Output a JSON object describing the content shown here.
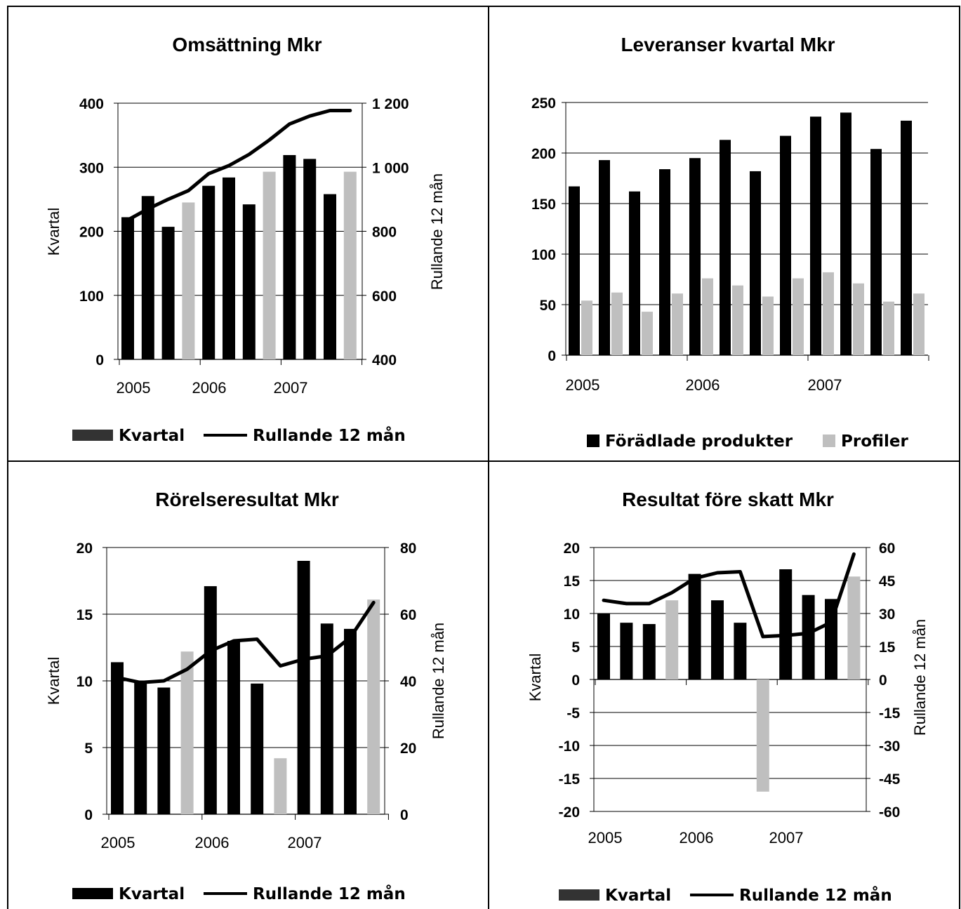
{
  "chart_data": [
    {
      "id": "omsattning",
      "type": "bar",
      "title": "Omsättning Mkr",
      "ylabel": "Kvartal",
      "y2label": "Rullande 12 mån",
      "ylim": [
        0,
        400
      ],
      "y2lim": [
        400,
        1200
      ],
      "yticks": [
        "0",
        "100",
        "200",
        "300",
        "400"
      ],
      "y2ticks": [
        "400",
        "600",
        "800",
        "1 000",
        "1 200"
      ],
      "x_labels": [
        {
          "text": "2005",
          "at": 0
        },
        {
          "text": "2006",
          "at": 4
        },
        {
          "text": "2007",
          "at": 8
        }
      ],
      "quarters": 12,
      "bars": [
        {
          "value": 222,
          "color": "#000000"
        },
        {
          "value": 255,
          "color": "#000000"
        },
        {
          "value": 207,
          "color": "#000000"
        },
        {
          "value": 245,
          "color": "#bfbfbf"
        },
        {
          "value": 271,
          "color": "#000000"
        },
        {
          "value": 284,
          "color": "#000000"
        },
        {
          "value": 242,
          "color": "#000000"
        },
        {
          "value": 293,
          "color": "#bfbfbf"
        },
        {
          "value": 319,
          "color": "#000000"
        },
        {
          "value": 313,
          "color": "#000000"
        },
        {
          "value": 258,
          "color": "#000000"
        },
        {
          "value": 293,
          "color": "#bfbfbf"
        }
      ],
      "line": [
        835,
        870,
        900,
        927,
        980,
        1005,
        1040,
        1085,
        1135,
        1160,
        1177,
        1177
      ],
      "legend": [
        {
          "label": "Kvartal",
          "kind": "bar",
          "color": "#333333"
        },
        {
          "label": "Rullande 12 mån",
          "kind": "line",
          "color": "#000000"
        }
      ]
    },
    {
      "id": "leveranser",
      "type": "bar",
      "title": "Leveranser kvartal Mkr",
      "ylim": [
        0,
        250
      ],
      "yticks": [
        "0",
        "50",
        "100",
        "150",
        "200",
        "250"
      ],
      "x_labels": [
        {
          "text": "2005",
          "at": 0
        },
        {
          "text": "2006",
          "at": 4
        },
        {
          "text": "2007",
          "at": 8
        }
      ],
      "categories": [
        "2005 Q1",
        "2005 Q2",
        "2005 Q3",
        "2005 Q4",
        "2006 Q1",
        "2006 Q2",
        "2006 Q3",
        "2006 Q4",
        "2007 Q1",
        "2007 Q2",
        "2007 Q3",
        "2007 Q4"
      ],
      "series": [
        {
          "name": "Förädlade produkter",
          "color": "#000000",
          "values": [
            167,
            193,
            162,
            184,
            195,
            213,
            182,
            217,
            236,
            240,
            204,
            232
          ]
        },
        {
          "name": "Profiler",
          "color": "#bfbfbf",
          "values": [
            54,
            62,
            43,
            61,
            76,
            69,
            58,
            76,
            82,
            71,
            53,
            61
          ]
        }
      ],
      "legend": [
        {
          "label": "Förädlade produkter",
          "kind": "square",
          "color": "#000000"
        },
        {
          "label": "Profiler",
          "kind": "square",
          "color": "#bfbfbf"
        }
      ]
    },
    {
      "id": "rorelseresultat",
      "type": "bar",
      "title": "Rörelseresultat Mkr",
      "ylabel": "Kvartal",
      "y2label": "Rullande 12 mån",
      "ylim": [
        0,
        20
      ],
      "y2lim": [
        0,
        80
      ],
      "yticks": [
        "0",
        "5",
        "10",
        "15",
        "20"
      ],
      "y2ticks": [
        "0",
        "20",
        "40",
        "60",
        "80"
      ],
      "x_labels": [
        {
          "text": "2005",
          "at": 0
        },
        {
          "text": "2006",
          "at": 4
        },
        {
          "text": "2007",
          "at": 8
        }
      ],
      "quarters": 12,
      "bars": [
        {
          "value": 11.4,
          "color": "#000000"
        },
        {
          "value": 10.0,
          "color": "#000000"
        },
        {
          "value": 9.5,
          "color": "#000000"
        },
        {
          "value": 12.2,
          "color": "#bfbfbf"
        },
        {
          "value": 17.1,
          "color": "#000000"
        },
        {
          "value": 13.0,
          "color": "#000000"
        },
        {
          "value": 9.8,
          "color": "#000000"
        },
        {
          "value": 4.2,
          "color": "#bfbfbf"
        },
        {
          "value": 19.0,
          "color": "#000000"
        },
        {
          "value": 14.3,
          "color": "#000000"
        },
        {
          "value": 13.9,
          "color": "#000000"
        },
        {
          "value": 16.1,
          "color": "#bfbfbf"
        }
      ],
      "line": [
        41,
        39.5,
        40,
        43.5,
        49,
        52,
        52.5,
        44.5,
        46.5,
        47.5,
        53,
        63.5
      ],
      "legend": [
        {
          "label": "Kvartal",
          "kind": "bar",
          "color": "#000000"
        },
        {
          "label": "Rullande 12 mån",
          "kind": "line",
          "color": "#000000"
        }
      ]
    },
    {
      "id": "resultat",
      "type": "bar",
      "title": "Resultat före skatt Mkr",
      "ylabel": "Kvartal",
      "y2label": "Rullande 12 mån",
      "ylim": [
        -20,
        20
      ],
      "y2lim": [
        -60,
        60
      ],
      "yticks": [
        "-20",
        "-15",
        "-10",
        "-5",
        "0",
        "5",
        "10",
        "15",
        "20"
      ],
      "y2ticks": [
        "-60",
        "-45",
        "-30",
        "-15",
        "0",
        "15",
        "30",
        "45",
        "60"
      ],
      "x_labels": [
        {
          "text": "2005",
          "at": 0
        },
        {
          "text": "2006",
          "at": 4
        },
        {
          "text": "2007",
          "at": 8
        }
      ],
      "quarters": 12,
      "bars": [
        {
          "value": 10.0,
          "color": "#000000"
        },
        {
          "value": 8.6,
          "color": "#000000"
        },
        {
          "value": 8.4,
          "color": "#000000"
        },
        {
          "value": 12.0,
          "color": "#bfbfbf"
        },
        {
          "value": 16.0,
          "color": "#000000"
        },
        {
          "value": 12.0,
          "color": "#000000"
        },
        {
          "value": 8.6,
          "color": "#000000"
        },
        {
          "value": -17.0,
          "color": "#bfbfbf"
        },
        {
          "value": 16.7,
          "color": "#000000"
        },
        {
          "value": 12.8,
          "color": "#000000"
        },
        {
          "value": 12.2,
          "color": "#000000"
        },
        {
          "value": 15.6,
          "color": "#bfbfbf"
        }
      ],
      "line": [
        36,
        34.5,
        34.5,
        39.5,
        46,
        48.5,
        49,
        19.5,
        20,
        21,
        26,
        57
      ],
      "legend": [
        {
          "label": "Kvartal",
          "kind": "bar",
          "color": "#333333"
        },
        {
          "label": "Rullande 12 mån",
          "kind": "line",
          "color": "#000000"
        }
      ]
    }
  ]
}
